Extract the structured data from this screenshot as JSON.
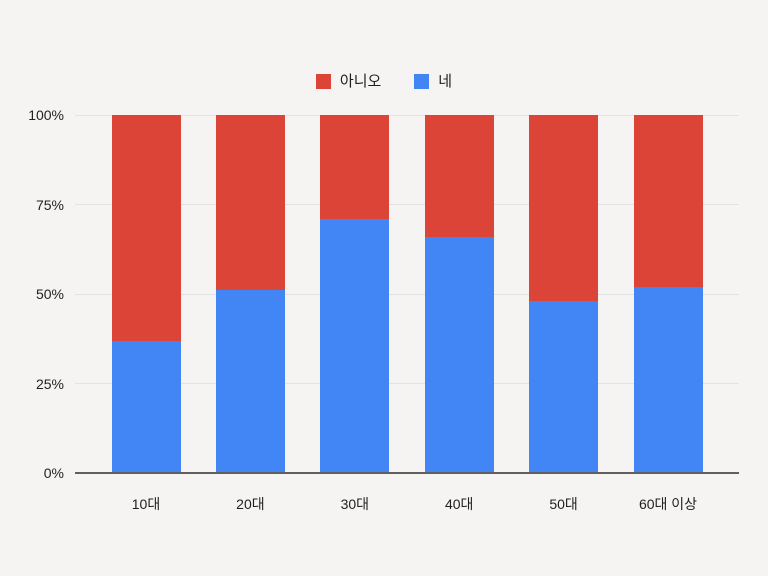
{
  "page": {
    "background_color": "#f5f4f2",
    "text_color": "#1f1f1f",
    "gridline_color": "#e3e3e1",
    "axis_line_color": "#5f5f5f"
  },
  "legend": {
    "position": "top-center",
    "items": [
      {
        "label": "아니오",
        "color": "#db4437"
      },
      {
        "label": "네",
        "color": "#4285f4"
      }
    ]
  },
  "chart_data": {
    "type": "bar",
    "variant": "100-percent-stacked-column",
    "title": "",
    "xlabel": "",
    "ylabel": "",
    "categories": [
      "10대",
      "20대",
      "30대",
      "40대",
      "50대",
      "60대 이상"
    ],
    "series": [
      {
        "name": "네",
        "color": "#4285f4",
        "position": "bottom",
        "values": [
          37,
          51,
          71,
          66,
          48,
          52
        ]
      },
      {
        "name": "아니오",
        "color": "#db4437",
        "position": "top",
        "values": [
          63,
          49,
          29,
          34,
          52,
          48
        ]
      }
    ],
    "ylim": [
      0,
      100
    ],
    "yticks": [
      "0%",
      "25%",
      "50%",
      "75%",
      "100%"
    ],
    "grid": true,
    "legend_position": "top"
  }
}
